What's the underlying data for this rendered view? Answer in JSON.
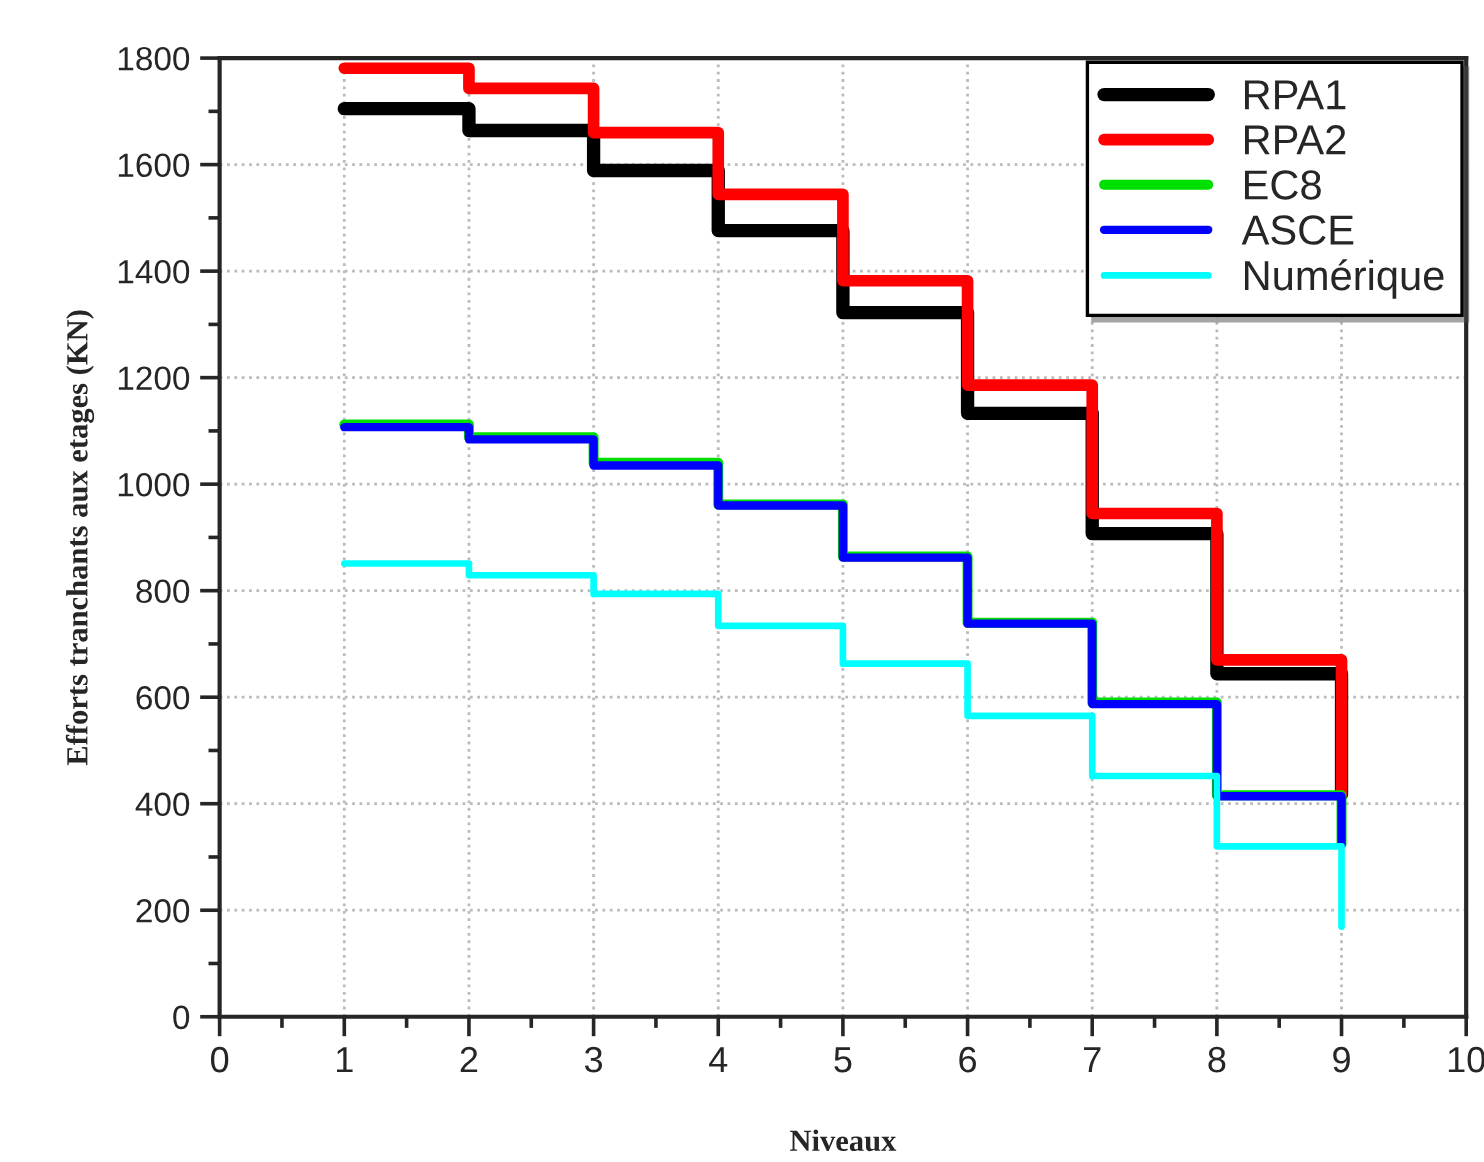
{
  "chart_data": {
    "type": "step",
    "xlabel": "Niveaux",
    "ylabel": "Efforts tranchants aux etages (KN)",
    "x": [
      1,
      2,
      3,
      4,
      5,
      6,
      7,
      8,
      9
    ],
    "series": [
      {
        "name": "RPA1",
        "color": "#000000",
        "values": [
          1705,
          1664,
          1589,
          1476,
          1322,
          1133,
          907,
          644,
          418
        ]
      },
      {
        "name": "RPA2",
        "color": "#ff0000",
        "values": [
          1781,
          1743,
          1660,
          1544,
          1382,
          1186,
          945,
          670,
          418
        ]
      },
      {
        "name": "EC8",
        "color": "#00e000",
        "values": [
          1112,
          1088,
          1040,
          962,
          864,
          740,
          590,
          416,
          324
        ]
      },
      {
        "name": "ASCE",
        "color": "#0000ff",
        "values": [
          1107,
          1084,
          1035,
          960,
          862,
          738,
          587,
          414,
          324
        ]
      },
      {
        "name": "Numérique",
        "color": "#00ffff",
        "values": [
          851,
          829,
          794,
          734,
          663,
          565,
          452,
          320,
          169
        ]
      }
    ],
    "xlim": [
      0,
      10
    ],
    "xticks": [
      0,
      1,
      2,
      3,
      4,
      5,
      6,
      7,
      8,
      9,
      10
    ],
    "ylim": [
      0,
      1800
    ],
    "yticks": [
      0,
      200,
      400,
      600,
      800,
      1000,
      1200,
      1400,
      1600,
      1800
    ],
    "grid": true,
    "legend": "top right",
    "line_style": "solid"
  }
}
